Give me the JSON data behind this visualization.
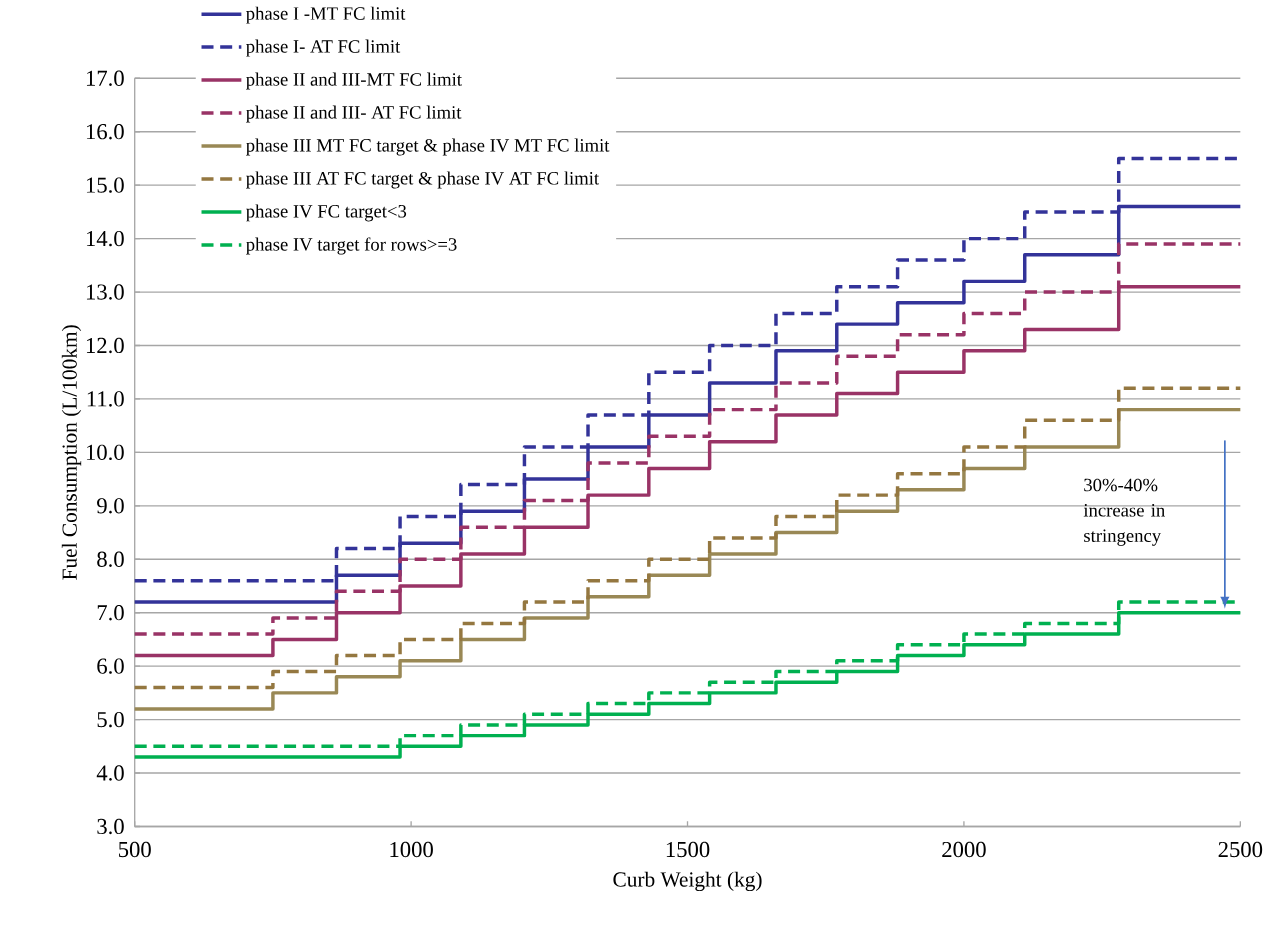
{
  "chart_data": {
    "type": "step",
    "xlabel": "Curb Weight (kg)",
    "ylabel": "Fuel Consumption (L/100km)",
    "x": [
      500,
      750,
      865,
      980,
      1090,
      1205,
      1320,
      1430,
      1540,
      1660,
      1770,
      1880,
      2000,
      2110,
      2280,
      2500
    ],
    "series": [
      {
        "name": "phase I -MT FC limit",
        "color": "#333399",
        "line_style": "solid",
        "values": [
          7.2,
          7.2,
          7.7,
          8.3,
          8.9,
          9.5,
          10.1,
          10.7,
          11.3,
          11.9,
          12.4,
          12.8,
          13.2,
          13.7,
          14.6,
          14.6
        ]
      },
      {
        "name": "phase I- AT FC limit",
        "color": "#333399",
        "line_style": "dashed",
        "values": [
          7.6,
          7.6,
          8.2,
          8.8,
          9.4,
          10.1,
          10.7,
          11.5,
          12.0,
          12.6,
          13.1,
          13.6,
          14.0,
          14.5,
          15.5,
          15.5
        ]
      },
      {
        "name": "phase II and III-MT FC limit",
        "color": "#993366",
        "line_style": "solid",
        "values": [
          6.2,
          6.5,
          7.0,
          7.5,
          8.1,
          8.6,
          9.2,
          9.7,
          10.2,
          10.7,
          11.1,
          11.5,
          11.9,
          12.3,
          13.1,
          13.1
        ]
      },
      {
        "name": "phase II and III- AT FC limit",
        "color": "#993366",
        "line_style": "dashed",
        "values": [
          6.6,
          6.9,
          7.4,
          8.0,
          8.6,
          9.1,
          9.8,
          10.3,
          10.8,
          11.3,
          11.8,
          12.2,
          12.6,
          13.0,
          13.9,
          13.9
        ]
      },
      {
        "name": "phase III MT FC target  & phase IV MT FC limit",
        "color": "#998855",
        "line_style": "solid",
        "values": [
          5.2,
          5.5,
          5.8,
          6.1,
          6.5,
          6.9,
          7.3,
          7.7,
          8.1,
          8.5,
          8.9,
          9.3,
          9.7,
          10.1,
          10.8,
          10.8
        ]
      },
      {
        "name": "phase III AT FC target  & phase IV AT FC limit",
        "color": "#947740",
        "line_style": "dashed",
        "values": [
          5.6,
          5.9,
          6.2,
          6.5,
          6.8,
          7.2,
          7.6,
          8.0,
          8.4,
          8.8,
          9.2,
          9.6,
          10.1,
          10.6,
          11.2,
          11.2
        ]
      },
      {
        "name": "phase IV FC  target<3",
        "color": "#00b050",
        "line_style": "solid",
        "values": [
          4.3,
          4.3,
          4.3,
          4.5,
          4.7,
          4.9,
          5.1,
          5.3,
          5.5,
          5.7,
          5.9,
          6.2,
          6.4,
          6.6,
          7.0,
          7.0
        ]
      },
      {
        "name": "phase IV target for rows>=3",
        "color": "#00b050",
        "line_style": "dashed",
        "values": [
          4.5,
          4.5,
          4.5,
          4.7,
          4.9,
          5.1,
          5.3,
          5.5,
          5.7,
          5.9,
          6.1,
          6.4,
          6.6,
          6.8,
          7.2,
          7.2
        ]
      }
    ],
    "xlim": [
      500,
      2500
    ],
    "xticks": [
      500,
      1000,
      1500,
      2000,
      2500
    ],
    "ylim": [
      3,
      17
    ],
    "yticks": [
      {
        "value": 3,
        "label": "3.0"
      },
      {
        "value": 4,
        "label": "4.0"
      },
      {
        "value": 5,
        "label": "5.0"
      },
      {
        "value": 6,
        "label": "6.0"
      },
      {
        "value": 7,
        "label": "7.0"
      },
      {
        "value": 8,
        "label": "8.0"
      },
      {
        "value": 9,
        "label": "9.0"
      },
      {
        "value": 10,
        "label": "10.0"
      },
      {
        "value": 11,
        "label": "11.0"
      },
      {
        "value": 12,
        "label": "12.0"
      },
      {
        "value": 13,
        "label": "13.0"
      },
      {
        "value": 14,
        "label": "14.0"
      },
      {
        "value": 15,
        "label": "15.0"
      },
      {
        "value": 16,
        "label": "16.0"
      },
      {
        "value": 17,
        "label": "17.0"
      }
    ],
    "grid": "y",
    "legend": "top left",
    "marker": "none",
    "annotations": [
      "30%-40% increase in stringency"
    ]
  }
}
